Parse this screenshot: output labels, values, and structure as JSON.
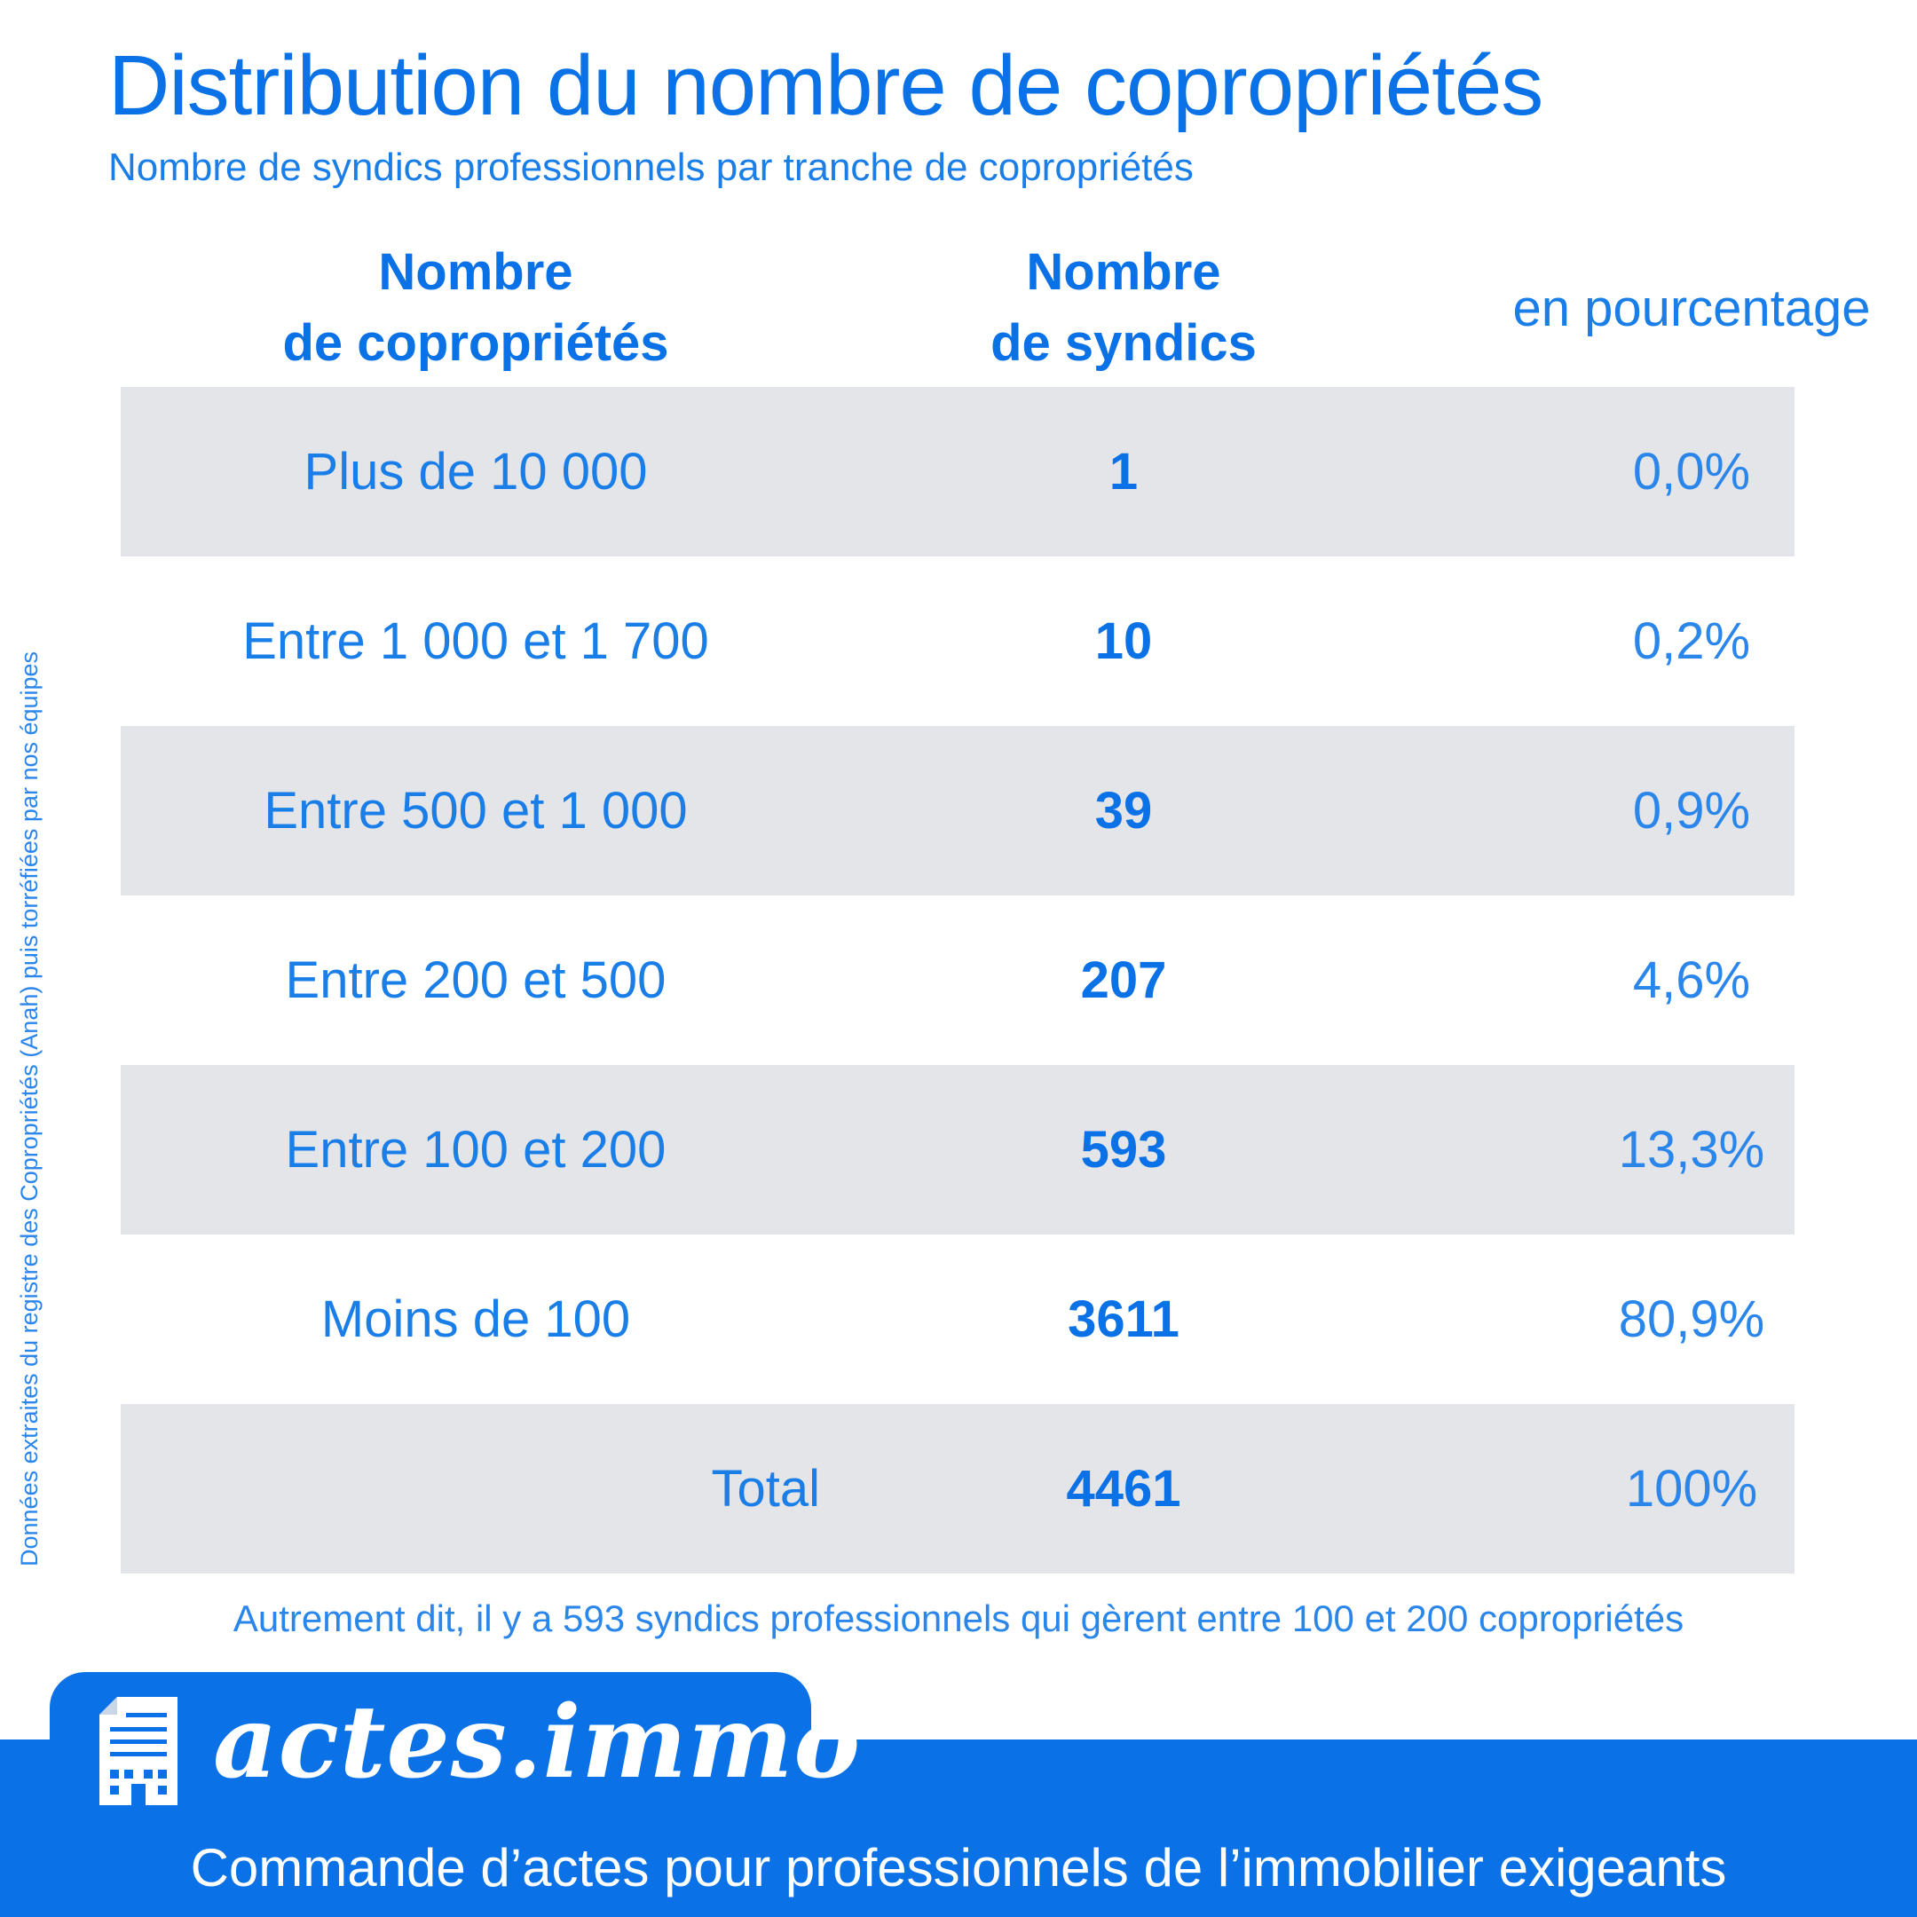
{
  "title": "Distribution du nombre de copropriétés",
  "subtitle": "Nombre de syndics professionnels par tranche de copropriétés",
  "side_note": "Données extraites du registre des Copropriétés (Anah) puis torréfiées par nos équipes",
  "table": {
    "headers": {
      "col1": "Nombre\nde copropriétés",
      "col2": "Nombre\nde syndics",
      "col3": "en pourcentage"
    },
    "rows": [
      {
        "range": "Plus de 10 000",
        "count": "1",
        "percent": "0,0%"
      },
      {
        "range": "Entre 1 000 et 1 700",
        "count": "10",
        "percent": "0,2%"
      },
      {
        "range": "Entre 500 et 1 000",
        "count": "39",
        "percent": "0,9%"
      },
      {
        "range": "Entre 200 et 500",
        "count": "207",
        "percent": "4,6%"
      },
      {
        "range": "Entre 100 et 200",
        "count": "593",
        "percent": "13,3%"
      },
      {
        "range": "Moins de 100",
        "count": "3611",
        "percent": "80,9%"
      }
    ],
    "total": {
      "label": "Total",
      "count": "4461",
      "percent": "100%"
    }
  },
  "footnote": "Autrement dit, il y a 593 syndics professionnels qui gèrent entre 100 et 200 copropriétés",
  "brand": {
    "name": "actes.immo",
    "tagline": "Commande d’actes pour professionnels de l’immobilier exigeants",
    "icon": "document-building-icon"
  },
  "colors": {
    "accent": "#0a72e6",
    "row_shade": "#e4e5e9"
  }
}
